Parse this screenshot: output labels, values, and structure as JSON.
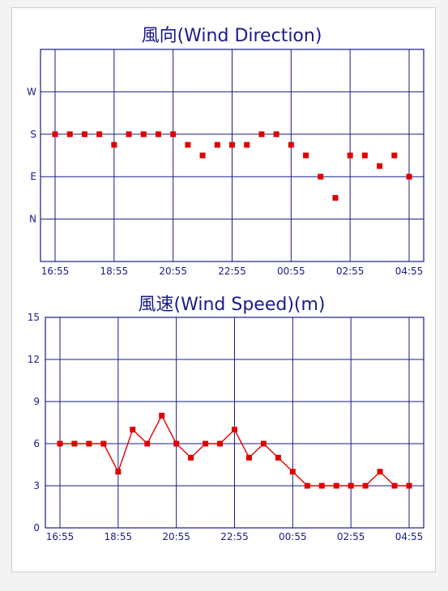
{
  "colors": {
    "axis": "#1a1a8a",
    "series": "#e00000",
    "panel_border": "#cfcfcf"
  },
  "chart_data": [
    {
      "type": "scatter",
      "title": "風向(Wind Direction)",
      "x_ticks": [
        "16:55",
        "18:55",
        "20:55",
        "22:55",
        "00:55",
        "02:55",
        "04:55"
      ],
      "y_ticks": [
        "N",
        "E",
        "S",
        "W"
      ],
      "y_tick_values": [
        1,
        2,
        3,
        4
      ],
      "ylim": [
        0,
        5
      ],
      "xlim": [
        0,
        24
      ],
      "grid": true,
      "series": [
        {
          "x": [
            0,
            1,
            2,
            3,
            4,
            5,
            6,
            7,
            8,
            9,
            10,
            11,
            12,
            13,
            14,
            15,
            16,
            17,
            18,
            19,
            20,
            21,
            22,
            23,
            24
          ],
          "values": [
            3,
            3,
            3,
            3,
            2.75,
            3,
            3,
            3,
            3,
            2.75,
            2.5,
            2.75,
            2.75,
            2.75,
            3,
            3,
            2.75,
            2.5,
            2,
            1.5,
            2.5,
            2.5,
            2.25,
            2.5,
            2
          ]
        }
      ]
    },
    {
      "type": "line",
      "title": "風速(Wind Speed)(m)",
      "x_ticks": [
        "16:55",
        "18:55",
        "20:55",
        "22:55",
        "00:55",
        "02:55",
        "04:55"
      ],
      "y_ticks": [
        "0",
        "3",
        "6",
        "9",
        "12",
        "15"
      ],
      "y_tick_values": [
        0,
        3,
        6,
        9,
        12,
        15
      ],
      "ylim": [
        0,
        15
      ],
      "xlim": [
        0,
        24
      ],
      "grid": true,
      "series": [
        {
          "x": [
            0,
            1,
            2,
            3,
            4,
            5,
            6,
            7,
            8,
            9,
            10,
            11,
            12,
            13,
            14,
            15,
            16,
            17,
            18,
            19,
            20,
            21,
            22,
            23,
            24
          ],
          "values": [
            6,
            6,
            6,
            6,
            4,
            7,
            6,
            8,
            6,
            5,
            6,
            6,
            7,
            5,
            6,
            5,
            4,
            3,
            3,
            3,
            3,
            3,
            4,
            3,
            3
          ]
        }
      ]
    }
  ]
}
